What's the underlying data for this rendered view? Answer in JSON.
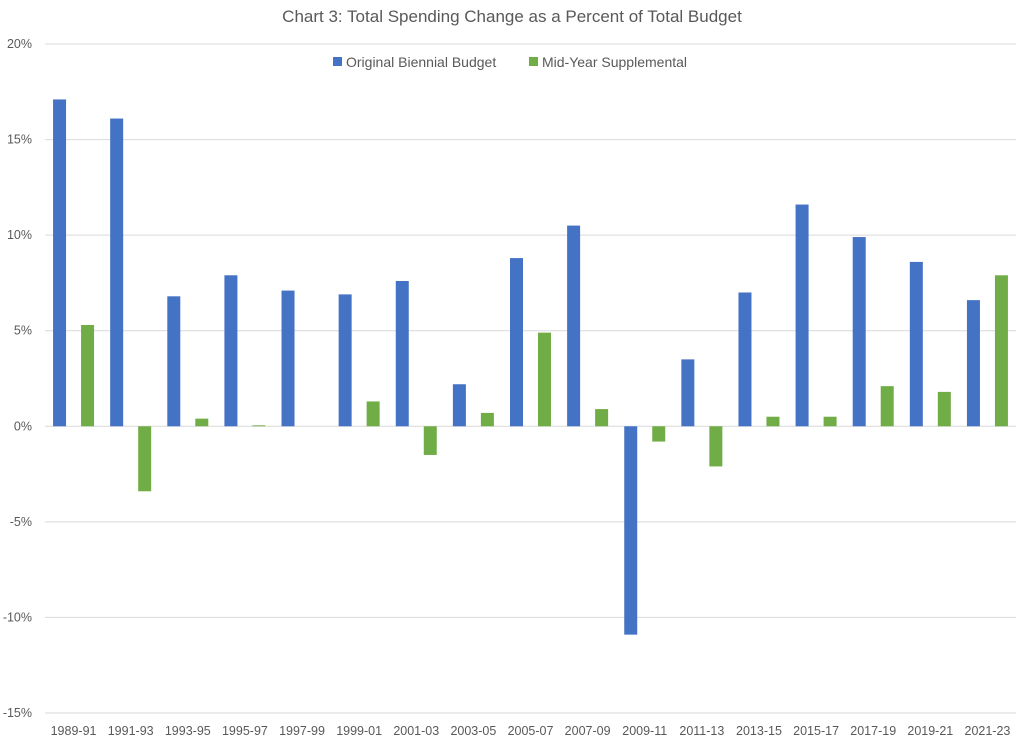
{
  "chart_data": {
    "type": "bar",
    "title": "Chart 3: Total Spending Change as a Percent of Total Budget",
    "xlabel": "",
    "ylabel": "",
    "ylim": [
      -15,
      20
    ],
    "y_ticks": [
      20,
      15,
      10,
      5,
      0,
      -5,
      -10,
      -15
    ],
    "y_tick_labels": [
      "20%",
      "15%",
      "10%",
      "5%",
      "0%",
      "-5%",
      "-10%",
      "-15%"
    ],
    "grid": true,
    "legend_position": "top-center",
    "categories": [
      "1989-91",
      "1991-93",
      "1993-95",
      "1995-97",
      "1997-99",
      "1999-01",
      "2001-03",
      "2003-05",
      "2005-07",
      "2007-09",
      "2009-11",
      "2011-13",
      "2013-15",
      "2015-17",
      "2017-19",
      "2019-21",
      "2021-23"
    ],
    "series": [
      {
        "name": "Original Biennial Budget",
        "color": "#4472c4",
        "values": [
          17.1,
          16.1,
          6.8,
          7.9,
          7.1,
          6.9,
          7.6,
          2.2,
          8.8,
          10.5,
          -10.9,
          3.5,
          7.0,
          11.6,
          9.9,
          8.6,
          6.6
        ]
      },
      {
        "name": "Mid-Year Supplemental",
        "color": "#70ad47",
        "values": [
          5.3,
          -3.4,
          0.4,
          0.05,
          0.0,
          1.3,
          -1.5,
          0.7,
          4.9,
          0.9,
          -0.8,
          -2.1,
          0.5,
          0.5,
          2.1,
          1.8,
          7.9
        ]
      }
    ]
  }
}
